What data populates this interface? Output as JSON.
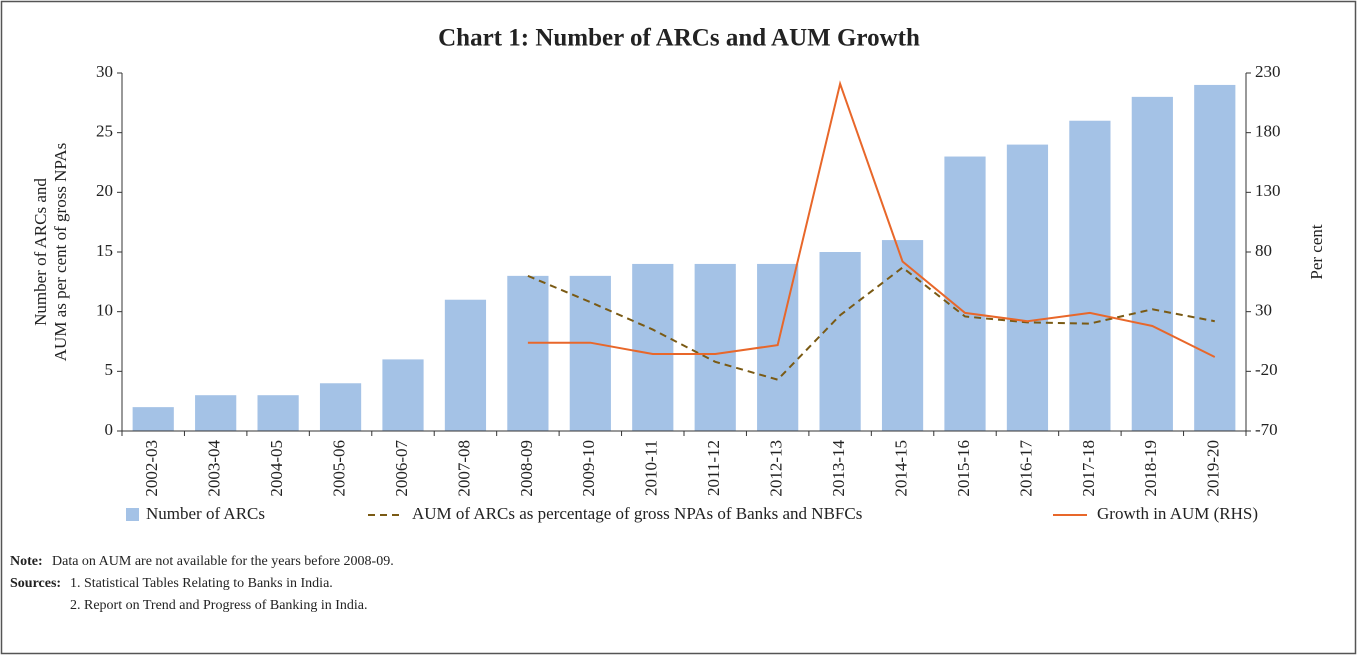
{
  "chart_data": {
    "type": "bar_line",
    "title": "Chart 1: Number of ARCs and AUM Growth",
    "categories": [
      "2002-03",
      "2003-04",
      "2004-05",
      "2005-06",
      "2006-07",
      "2007-08",
      "2008-09",
      "2009-10",
      "2010-11",
      "2011-12",
      "2012-13",
      "2013-14",
      "2014-15",
      "2015-16",
      "2016-17",
      "2017-18",
      "2018-19",
      "2019-20"
    ],
    "series": [
      {
        "name": "Number of ARCs",
        "kind": "bar",
        "color": "#a4c2e6",
        "values": [
          2,
          3,
          3,
          4,
          6,
          11,
          13,
          13,
          14,
          14,
          14,
          15,
          16,
          23,
          24,
          26,
          28,
          29
        ]
      },
      {
        "name": "AUM of ARCs as percentage of gross NPAs of Banks and NBFCs",
        "kind": "dashed",
        "color": "#7a5a14",
        "values": [
          null,
          null,
          null,
          null,
          null,
          null,
          13.0,
          10.8,
          8.5,
          5.8,
          4.3,
          9.7,
          13.7,
          9.6,
          9.1,
          9.0,
          10.2,
          9.2
        ]
      },
      {
        "name": "Growth in AUM (RHS)",
        "kind": "line",
        "axis": "y2",
        "color": "#e8672a",
        "values": [
          null,
          null,
          null,
          null,
          null,
          null,
          4,
          4,
          -5.5,
          -5.5,
          2,
          221,
          72,
          29,
          22,
          29,
          18,
          -8
        ]
      }
    ],
    "ylim": [
      0,
      30
    ],
    "yticks": [
      0,
      5,
      10,
      15,
      20,
      25,
      30
    ],
    "y2lim": [
      -70,
      230
    ],
    "y2ticks": [
      -70,
      -20,
      30,
      80,
      130,
      180,
      230
    ],
    "ylabel": [
      "Number of ARCs and",
      "AUM as per cent of gross NPAs"
    ],
    "y2label": "Per cent",
    "note_label": "Note:",
    "note": "Data on AUM are not available for the years before 2008-09.",
    "sources_label": "Sources:",
    "sources": [
      "1. Statistical Tables Relating to Banks in India.",
      "2. Report on Trend and Progress of Banking in India."
    ]
  }
}
